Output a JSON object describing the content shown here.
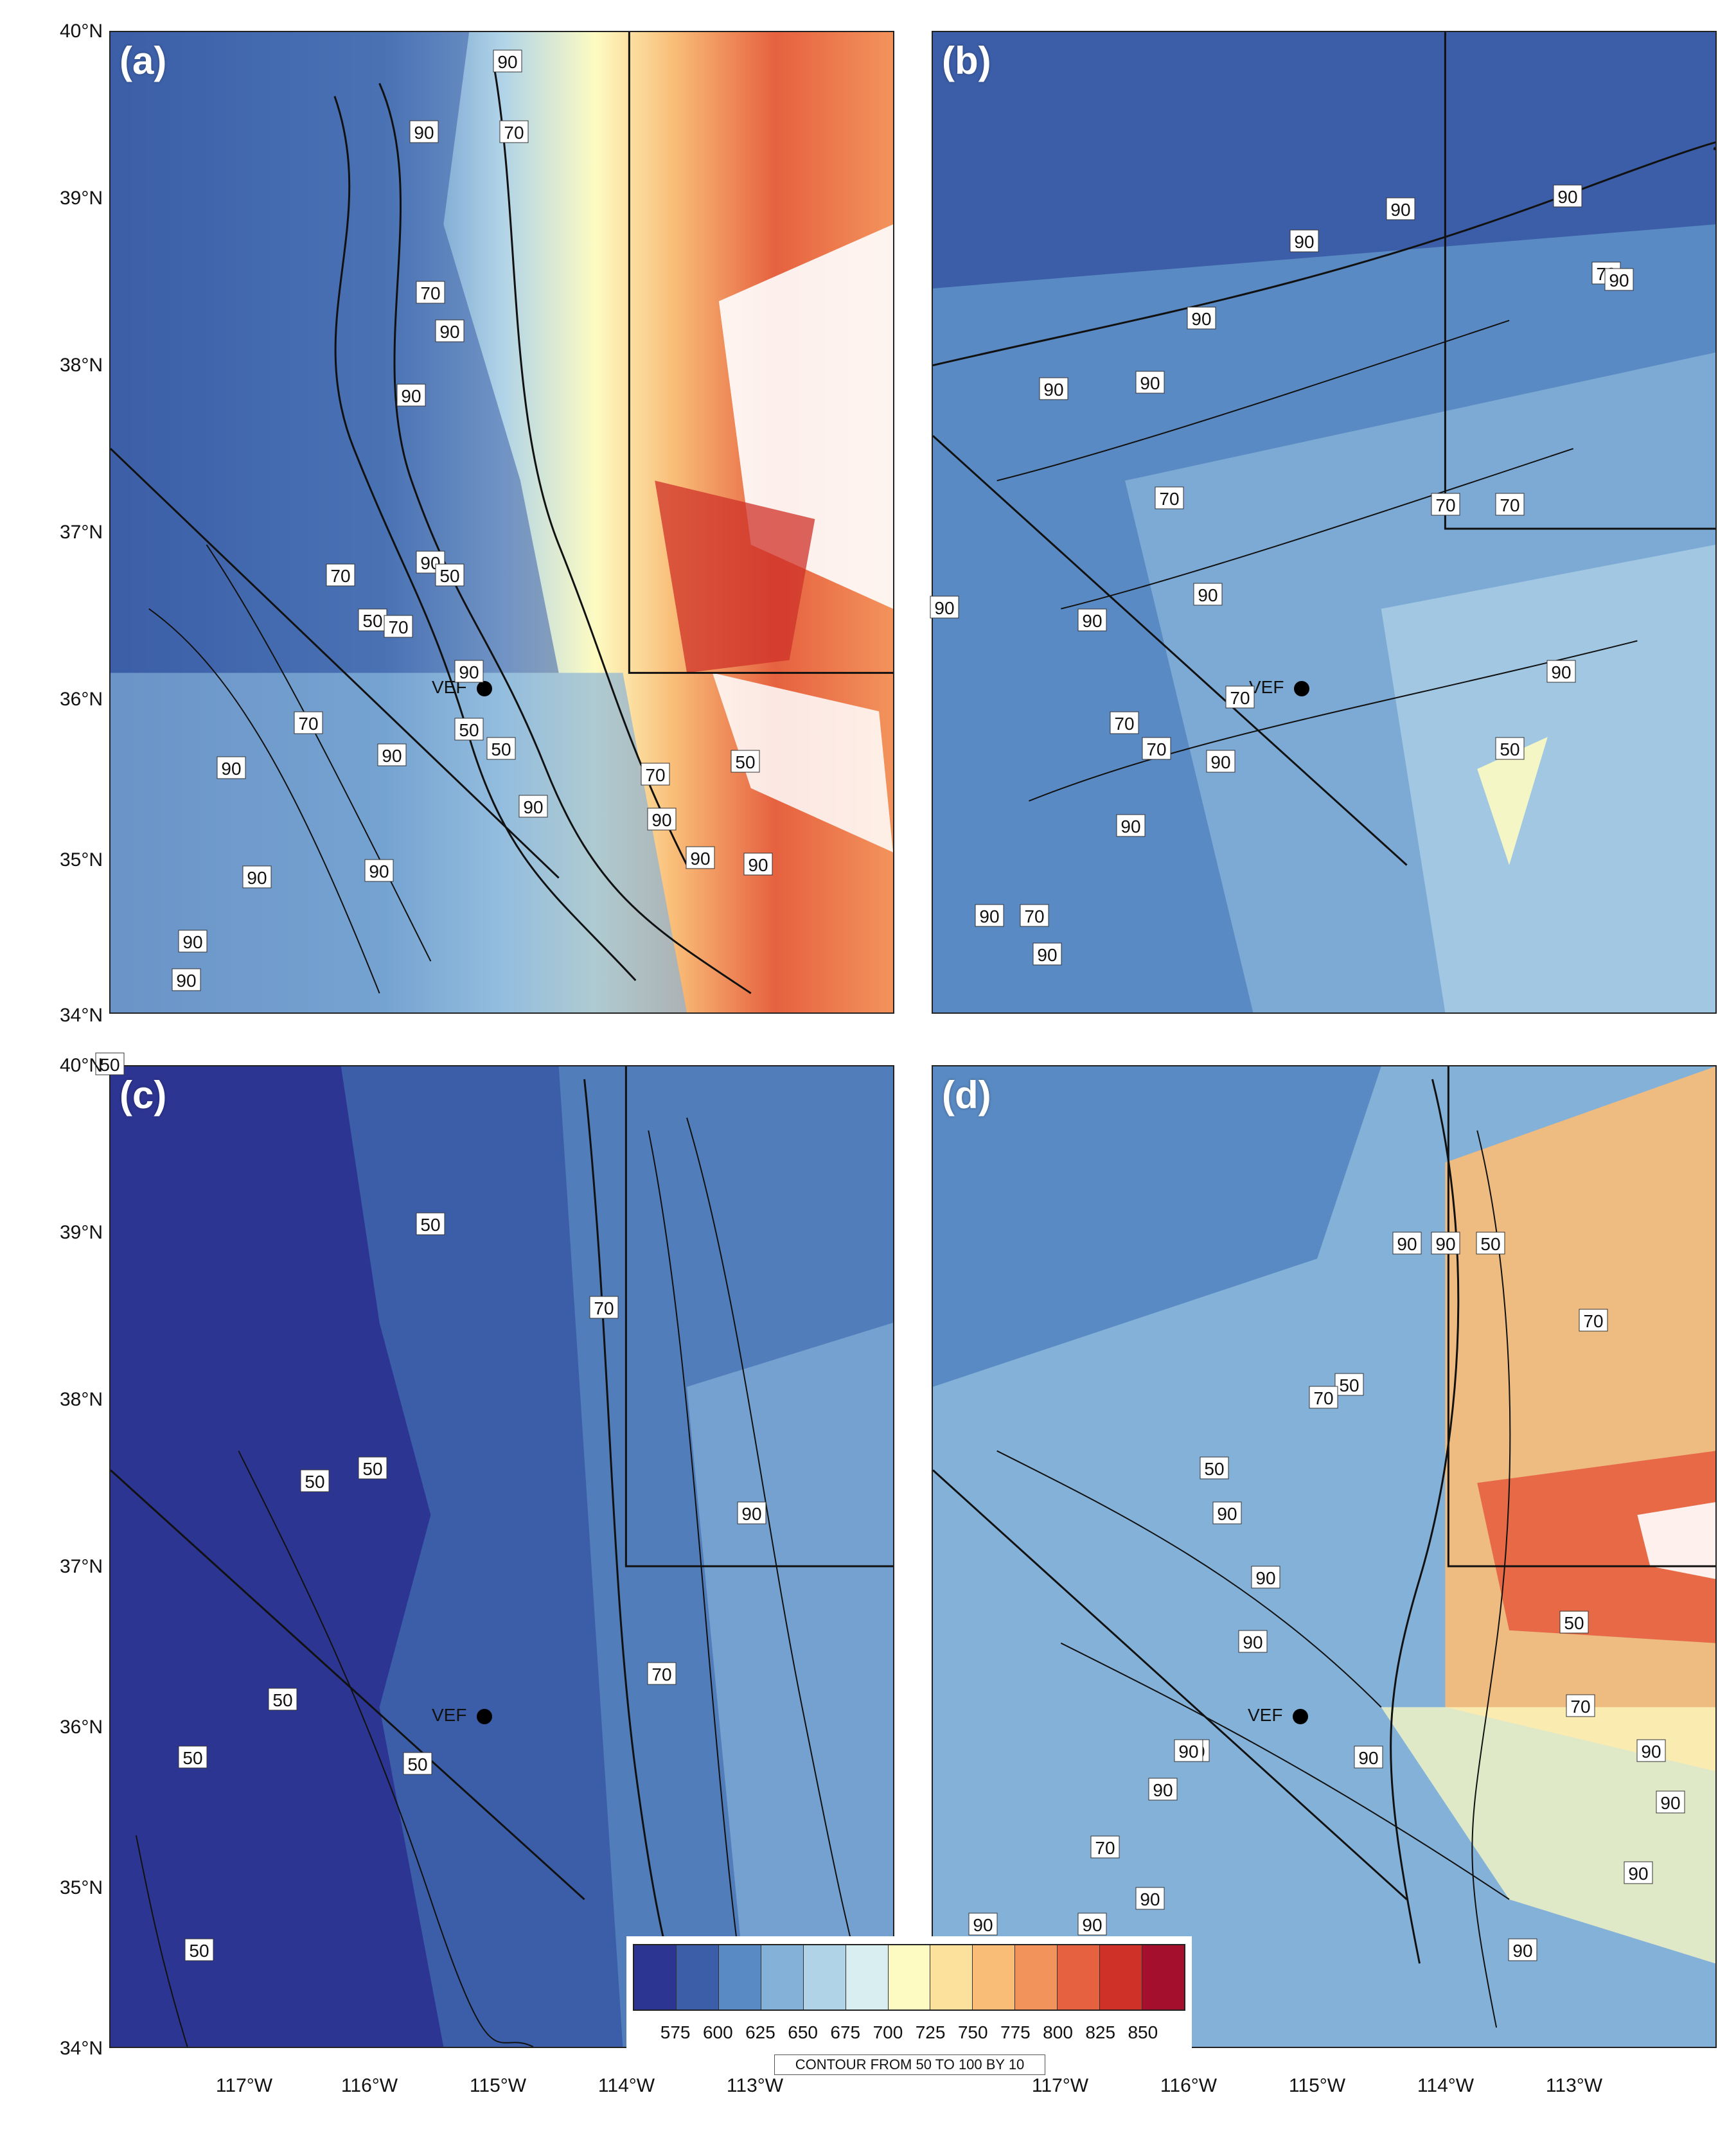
{
  "panels": [
    {
      "label": "(a)",
      "site": "VEF"
    },
    {
      "label": "(b)",
      "site": "VEF"
    },
    {
      "label": "(c)",
      "site": "VEF"
    },
    {
      "label": "(d)",
      "site": "VEF"
    }
  ],
  "axes": {
    "lat_labels": [
      "40°N",
      "39°N",
      "38°N",
      "37°N",
      "36°N",
      "35°N",
      "34°N"
    ],
    "lon_labels": [
      "117°W",
      "116°W",
      "115°W",
      "114°W",
      "113°W"
    ]
  },
  "contour_labels": {
    "a": [
      "90",
      "90",
      "70",
      "70",
      "90",
      "90",
      "90",
      "70",
      "50",
      "50",
      "70",
      "90",
      "50",
      "50",
      "70",
      "90",
      "90",
      "90",
      "90",
      "90",
      "90",
      "90",
      "70",
      "50",
      "90",
      "90",
      "90"
    ],
    "b": [
      "90",
      "90",
      "90",
      "90",
      "70",
      "90",
      "90",
      "70",
      "70",
      "70",
      "90",
      "90",
      "90",
      "70",
      "70",
      "70",
      "50",
      "90",
      "70",
      "90",
      "90",
      "90",
      "90",
      "90"
    ],
    "c": [
      "50",
      "70",
      "50",
      "90",
      "70",
      "50",
      "50",
      "50",
      "50",
      "50",
      "50"
    ],
    "d": [
      "90",
      "90",
      "50",
      "50",
      "70",
      "50",
      "70",
      "90",
      "90",
      "90",
      "70",
      "90",
      "50",
      "90",
      "90",
      "70",
      "90",
      "90",
      "90",
      "90",
      "90",
      "90",
      "90",
      "90"
    ]
  },
  "legend": {
    "colors": [
      "#2d3592",
      "#3c5ea8",
      "#5a8ac3",
      "#84b1d8",
      "#b0d3e8",
      "#d9eef0",
      "#fdfbc2",
      "#fce19c",
      "#f9bd78",
      "#f3935c",
      "#e6613f",
      "#cf3128",
      "#a50f2e"
    ],
    "values": [
      "575",
      "600",
      "625",
      "650",
      "675",
      "700",
      "725",
      "750",
      "775",
      "800",
      "825",
      "850"
    ],
    "caption": "CONTOUR FROM 50 TO 100 BY 10"
  }
}
